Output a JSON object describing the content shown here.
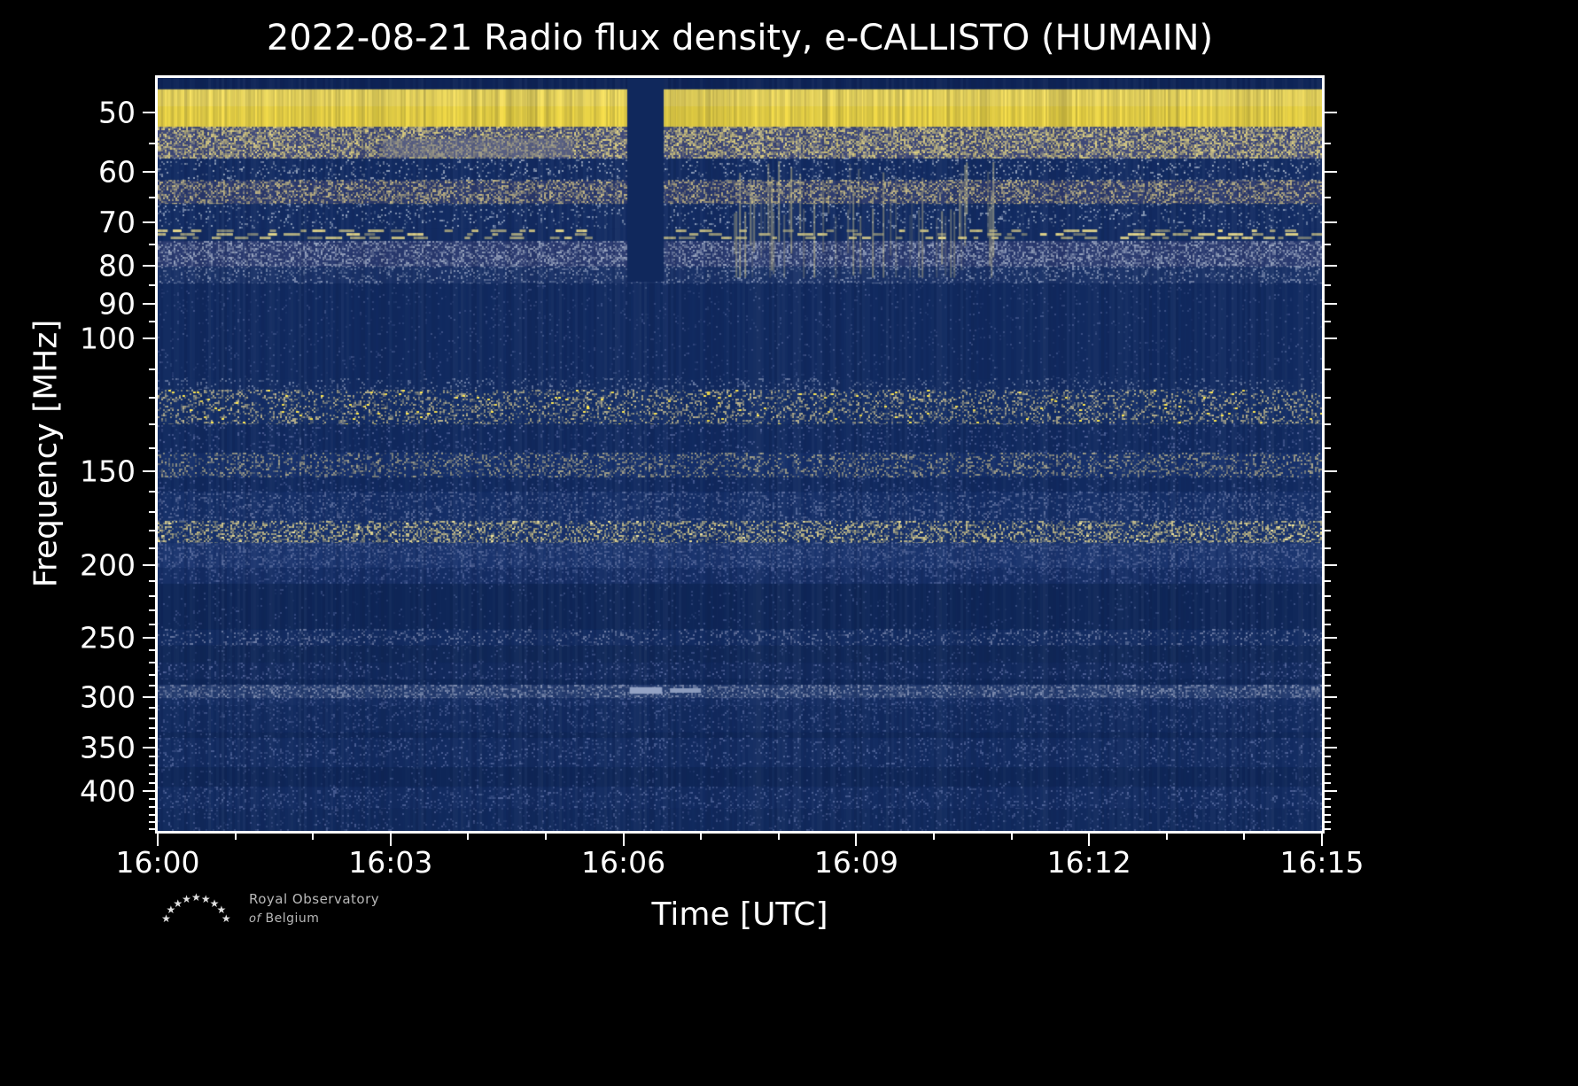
{
  "logo": {
    "star_glyph": "★",
    "line1": "Royal Observatory",
    "of": "of",
    "line2": "Belgium"
  },
  "chart_data": {
    "type": "heatmap",
    "title": "2022-08-21 Radio flux density, e-CALLISTO (HUMAIN)",
    "date": "2022-08-21",
    "station": "HUMAIN",
    "instrument": "e-CALLISTO",
    "xlabel": "Time [UTC]",
    "ylabel": "Frequency [MHz]",
    "x_range": [
      "16:00",
      "16:15"
    ],
    "duration_minutes": 15,
    "x_major_ticks": [
      "16:00",
      "16:03",
      "16:06",
      "16:09",
      "16:12",
      "16:15"
    ],
    "x_minor_minutes": [
      1,
      2,
      4,
      5,
      7,
      8,
      10,
      11,
      13,
      14
    ],
    "y_scale": "log",
    "y_range_mhz": [
      45,
      452
    ],
    "y_major_ticks": [
      50,
      60,
      70,
      80,
      90,
      100,
      150,
      200,
      250,
      300,
      350,
      400
    ],
    "y_minor_ticks": [
      55,
      65,
      75,
      85,
      95,
      110,
      120,
      130,
      140,
      160,
      170,
      180,
      190,
      210,
      220,
      230,
      240,
      260,
      270,
      280,
      290,
      310,
      320,
      330,
      340,
      360,
      370,
      380,
      390,
      410,
      420,
      430,
      440,
      450
    ],
    "background_color": "#112a60",
    "bands": [
      {
        "f": [
          45,
          46.6
        ],
        "style": "solid",
        "base": "#0e2457"
      },
      {
        "f": [
          46.6,
          52.3
        ],
        "style": "solid",
        "base": "#f8e04a",
        "noise": 0.2
      },
      {
        "f": [
          52.3,
          57.6
        ],
        "style": "speckle",
        "base": "#3e4878",
        "speckle": "#e2d382",
        "density": 0.6
      },
      {
        "f": [
          57.6,
          61.6
        ],
        "style": "speckle",
        "base": "#132c63",
        "speckle": "#9caac2",
        "density": 0.13
      },
      {
        "f": [
          61.6,
          66.2
        ],
        "style": "speckle",
        "base": "#2c3a6d",
        "speckle": "#c7ba84",
        "density": 0.45
      },
      {
        "f": [
          66.2,
          71.4
        ],
        "style": "speckle",
        "base": "#132c63",
        "speckle": "#8fa0bd",
        "density": 0.12
      },
      {
        "f": [
          71.4,
          74.2
        ],
        "style": "dashes",
        "base": "#132c63",
        "speckle": "#e6d88a",
        "density": 0.5
      },
      {
        "f": [
          74.2,
          80.3
        ],
        "style": "speckle",
        "base": "#2a3a70",
        "speckle": "#9aa6c0",
        "density": 0.42
      },
      {
        "f": [
          80.3,
          84.5
        ],
        "style": "speckle",
        "base": "#1a3268",
        "speckle": "#7f8fb2",
        "density": 0.22
      },
      {
        "f": [
          84.5,
          113
        ],
        "style": "speckle",
        "base": "#112a60",
        "speckle": "#3d5288",
        "density": 0.05
      },
      {
        "f": [
          113,
          117
        ],
        "style": "speckle",
        "base": "#122b61",
        "speckle": "#6d7ea6",
        "density": 0.15
      },
      {
        "f": [
          117,
          130
        ],
        "style": "speckle",
        "base": "#142e66",
        "speckle": "#c3ba8e",
        "density": 0.3,
        "dots": {
          "color": "#ffe94f",
          "density": 0.02
        }
      },
      {
        "f": [
          130,
          142
        ],
        "style": "speckle",
        "base": "#112a60",
        "speckle": "#51639a",
        "density": 0.1
      },
      {
        "f": [
          142,
          153
        ],
        "style": "speckle",
        "base": "#16306a",
        "speckle": "#a8a488",
        "density": 0.3
      },
      {
        "f": [
          153,
          160
        ],
        "style": "speckle",
        "base": "#112a60",
        "speckle": "#4a5e96",
        "density": 0.1
      },
      {
        "f": [
          160,
          175
        ],
        "style": "speckle",
        "base": "#152f68",
        "speckle": "#5d6f9f",
        "density": 0.25
      },
      {
        "f": [
          175,
          187
        ],
        "style": "speckle",
        "base": "#17316b",
        "speckle": "#d4c98b",
        "density": 0.42,
        "dots": {
          "color": "#efe39a",
          "density": 0.015
        }
      },
      {
        "f": [
          187,
          202
        ],
        "style": "speckle",
        "base": "#1b356f",
        "speckle": "#56699c",
        "density": 0.3
      },
      {
        "f": [
          202,
          212
        ],
        "style": "speckle",
        "base": "#152e66",
        "speckle": "#4a5e96",
        "density": 0.2
      },
      {
        "f": [
          212,
          244
        ],
        "style": "speckle",
        "base": "#0f2759",
        "speckle": "#3a4f85",
        "density": 0.05
      },
      {
        "f": [
          244,
          256
        ],
        "style": "speckle",
        "base": "#132c62",
        "speckle": "#6e7da6",
        "density": 0.2
      },
      {
        "f": [
          256,
          270
        ],
        "style": "speckle",
        "base": "#102859",
        "speckle": "#3a4f85",
        "density": 0.07
      },
      {
        "f": [
          270,
          284
        ],
        "style": "speckle",
        "base": "#122a5e",
        "speckle": "#51639a",
        "density": 0.14
      },
      {
        "f": [
          284,
          289
        ],
        "style": "speckle",
        "base": "#0f2759",
        "speckle": "#3a4f85",
        "density": 0.05
      },
      {
        "f": [
          289,
          301
        ],
        "style": "speckle",
        "base": "#243c70",
        "speckle": "#8290b2",
        "density": 0.4
      },
      {
        "f": [
          301,
          308
        ],
        "style": "speckle",
        "base": "#152e64",
        "speckle": "#4a5e96",
        "density": 0.18
      },
      {
        "f": [
          308,
          334
        ],
        "style": "speckle",
        "base": "#122b60",
        "speckle": "#45598f",
        "density": 0.15
      },
      {
        "f": [
          334,
          340
        ],
        "style": "speckle",
        "base": "#0f2759",
        "speckle": "#3a4f85",
        "density": 0.06
      },
      {
        "f": [
          340,
          372
        ],
        "style": "speckle",
        "base": "#132c62",
        "speckle": "#4f6399",
        "density": 0.15
      },
      {
        "f": [
          372,
          395
        ],
        "style": "speckle",
        "base": "#0f2759",
        "speckle": "#3a4f85",
        "density": 0.06
      },
      {
        "f": [
          395,
          422
        ],
        "style": "speckle",
        "base": "#132c62",
        "speckle": "#4f6399",
        "density": 0.16
      },
      {
        "f": [
          422,
          452
        ],
        "style": "speckle",
        "base": "#112a5e",
        "speckle": "#45598f",
        "density": 0.1
      }
    ],
    "events": [
      {
        "kind": "patch",
        "t": [
          2.9,
          5.35
        ],
        "f": [
          54.2,
          57.4
        ],
        "color": "#6f7389",
        "alpha": 0.5,
        "note": "smooth grey patch in 54-57 MHz band"
      },
      {
        "kind": "streaks",
        "t": [
          7.4,
          10.8
        ],
        "f": [
          58,
          83
        ],
        "color": "#d5ca8e",
        "density": 0.4,
        "note": "enhanced vertical striping 16:07-16:11 between 58-83 MHz"
      },
      {
        "kind": "gap",
        "t": [
          6.05,
          6.52
        ],
        "f": [
          45,
          84
        ],
        "color": "#10285c",
        "note": "data gap just after 16:06 in low-frequency bands"
      },
      {
        "kind": "dash",
        "t": [
          6.08,
          6.5
        ],
        "f": [
          291,
          297
        ],
        "color": "#94a3c5",
        "note": "short bright dash near 295 MHz at 16:06"
      },
      {
        "kind": "dash",
        "t": [
          6.6,
          7.0
        ],
        "f": [
          292,
          296
        ],
        "color": "#8c9cbe",
        "note": "second short dash near 295 MHz"
      }
    ]
  }
}
